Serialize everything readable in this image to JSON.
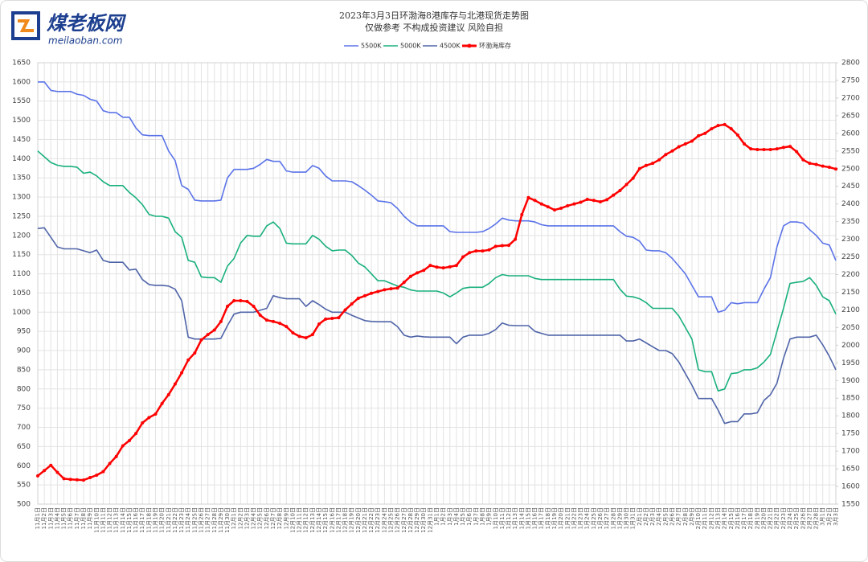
{
  "logo": {
    "name": "煤老板网",
    "url": "meilaoban.com"
  },
  "chart_data": {
    "type": "line",
    "title": "2023年3月3日环渤海8港库存与北港现货走势图",
    "subtitle": "仅做参考 不构成投资建议 风险自担",
    "categories": [
      "11月1日",
      "11月2日",
      "11月3日",
      "11月4日",
      "11月5日",
      "11月6日",
      "11月7日",
      "11月8日",
      "11月9日",
      "11月10日",
      "11月11日",
      "11月12日",
      "11月13日",
      "11月14日",
      "11月15日",
      "11月16日",
      "11月17日",
      "11月18日",
      "11月19日",
      "11月20日",
      "11月21日",
      "11月22日",
      "11月23日",
      "11月24日",
      "11月25日",
      "11月26日",
      "11月27日",
      "11月28日",
      "11月29日",
      "11月30日",
      "12月1日",
      "12月2日",
      "12月3日",
      "12月4日",
      "12月5日",
      "12月6日",
      "12月7日",
      "12月8日",
      "12月9日",
      "12月10日",
      "12月11日",
      "12月12日",
      "12月13日",
      "12月14日",
      "12月15日",
      "12月16日",
      "12月17日",
      "12月18日",
      "12月19日",
      "12月20日",
      "12月21日",
      "12月22日",
      "12月23日",
      "12月24日",
      "12月25日",
      "12月26日",
      "12月27日",
      "12月28日",
      "12月29日",
      "12月30日",
      "12月31日",
      "1月1日",
      "1月2日",
      "1月3日",
      "1月4日",
      "1月5日",
      "1月6日",
      "1月7日",
      "1月8日",
      "1月9日",
      "1月10日",
      "1月11日",
      "1月12日",
      "1月13日",
      "1月14日",
      "1月15日",
      "1月16日",
      "1月17日",
      "1月18日",
      "1月19日",
      "1月20日",
      "1月21日",
      "1月22日",
      "1月23日",
      "1月24日",
      "1月25日",
      "1月26日",
      "1月27日",
      "1月28日",
      "1月29日",
      "1月30日",
      "1月31日",
      "2月1日",
      "2月2日",
      "2月3日",
      "2月4日",
      "2月5日",
      "2月6日",
      "2月7日",
      "2月8日",
      "2月9日",
      "2月10日",
      "2月11日",
      "2月12日",
      "2月13日",
      "2月14日",
      "2月15日",
      "2月16日",
      "2月17日",
      "2月18日",
      "2月19日",
      "2月20日",
      "2月21日",
      "2月22日",
      "2月23日",
      "2月24日",
      "2月25日",
      "2月26日",
      "2月27日",
      "2月28日",
      "3月1日",
      "3月2日",
      "3月3日"
    ],
    "series": [
      {
        "name": "5500K",
        "color": "#5b73e8",
        "values": [
          1600,
          1600,
          1578,
          1575,
          1575,
          1575,
          1568,
          1565,
          1555,
          1550,
          1525,
          1520,
          1520,
          1508,
          1508,
          1480,
          1462,
          1460,
          1460,
          1460,
          1420,
          1395,
          1330,
          1320,
          1292,
          1290,
          1290,
          1290,
          1292,
          1350,
          1372,
          1372,
          1372,
          1375,
          1385,
          1398,
          1393,
          1393,
          1368,
          1365,
          1365,
          1365,
          1382,
          1375,
          1355,
          1342,
          1342,
          1342,
          1340,
          1330,
          1318,
          1305,
          1290,
          1288,
          1285,
          1270,
          1250,
          1235,
          1225,
          1225,
          1225,
          1225,
          1225,
          1210,
          1208,
          1208,
          1208,
          1208,
          1210,
          1218,
          1230,
          1245,
          1240,
          1238,
          1238,
          1238,
          1235,
          1228,
          1225,
          1225,
          1225,
          1225,
          1225,
          1225,
          1225,
          1225,
          1225,
          1225,
          1225,
          1210,
          1198,
          1195,
          1185,
          1162,
          1160,
          1160,
          1155,
          1140,
          1120,
          1100,
          1070,
          1040,
          1040,
          1040,
          1000,
          1005,
          1025,
          1022,
          1025,
          1025,
          1025,
          1060,
          1090,
          1170,
          1225,
          1235,
          1235,
          1232,
          1215,
          1200,
          1180,
          1175,
          1135
        ]
      },
      {
        "name": "5000K",
        "color": "#19b07d",
        "values": [
          1420,
          1405,
          1390,
          1383,
          1380,
          1380,
          1378,
          1362,
          1365,
          1355,
          1340,
          1330,
          1330,
          1330,
          1312,
          1298,
          1280,
          1255,
          1250,
          1250,
          1245,
          1210,
          1195,
          1135,
          1130,
          1092,
          1090,
          1090,
          1078,
          1120,
          1140,
          1180,
          1200,
          1198,
          1198,
          1225,
          1235,
          1218,
          1180,
          1178,
          1178,
          1178,
          1200,
          1190,
          1172,
          1160,
          1162,
          1162,
          1148,
          1128,
          1118,
          1100,
          1082,
          1082,
          1075,
          1068,
          1065,
          1058,
          1055,
          1055,
          1055,
          1055,
          1050,
          1040,
          1050,
          1062,
          1065,
          1065,
          1065,
          1075,
          1090,
          1098,
          1095,
          1095,
          1095,
          1095,
          1088,
          1085,
          1085,
          1085,
          1085,
          1085,
          1085,
          1085,
          1085,
          1085,
          1085,
          1085,
          1085,
          1060,
          1042,
          1040,
          1035,
          1025,
          1010,
          1010,
          1010,
          1010,
          990,
          960,
          930,
          850,
          845,
          845,
          795,
          800,
          840,
          842,
          850,
          850,
          855,
          870,
          890,
          950,
          1010,
          1075,
          1078,
          1080,
          1090,
          1070,
          1040,
          1030,
          995
        ]
      },
      {
        "name": "4500K",
        "color": "#4f64a8",
        "values": [
          1218,
          1220,
          1195,
          1170,
          1165,
          1165,
          1165,
          1160,
          1155,
          1162,
          1135,
          1130,
          1130,
          1130,
          1110,
          1112,
          1085,
          1072,
          1070,
          1070,
          1068,
          1060,
          1030,
          935,
          930,
          930,
          930,
          930,
          932,
          965,
          995,
          1000,
          1000,
          1000,
          1005,
          1010,
          1043,
          1038,
          1035,
          1035,
          1035,
          1015,
          1030,
          1020,
          1008,
          1000,
          1000,
          1000,
          992,
          985,
          978,
          976,
          975,
          975,
          975,
          962,
          940,
          935,
          938,
          936,
          935,
          935,
          935,
          935,
          918,
          935,
          940,
          940,
          940,
          945,
          955,
          972,
          966,
          965,
          965,
          965,
          950,
          945,
          940,
          940,
          940,
          940,
          940,
          940,
          940,
          940,
          940,
          940,
          940,
          940,
          925,
          925,
          930,
          920,
          910,
          900,
          900,
          892,
          870,
          840,
          810,
          775,
          775,
          775,
          745,
          710,
          715,
          715,
          735,
          735,
          738,
          770,
          785,
          815,
          880,
          930,
          935,
          935,
          935,
          940,
          915,
          885,
          850
        ]
      },
      {
        "name": "环渤海库存",
        "color": "#ff0000",
        "axis": "y2",
        "markers": true,
        "values": [
          1630,
          1645,
          1660,
          1640,
          1622,
          1620,
          1619,
          1618,
          1625,
          1632,
          1642,
          1665,
          1685,
          1715,
          1730,
          1750,
          1780,
          1795,
          1805,
          1835,
          1860,
          1890,
          1922,
          1958,
          1978,
          2015,
          2030,
          2043,
          2067,
          2110,
          2126,
          2126,
          2124,
          2110,
          2085,
          2071,
          2067,
          2062,
          2053,
          2035,
          2025,
          2021,
          2030,
          2060,
          2074,
          2076,
          2078,
          2100,
          2117,
          2133,
          2140,
          2147,
          2152,
          2157,
          2160,
          2162,
          2178,
          2195,
          2205,
          2212,
          2226,
          2221,
          2219,
          2222,
          2226,
          2250,
          2262,
          2267,
          2267,
          2270,
          2280,
          2282,
          2283,
          2300,
          2370,
          2418,
          2410,
          2400,
          2392,
          2383,
          2388,
          2395,
          2400,
          2405,
          2413,
          2410,
          2406,
          2412,
          2425,
          2438,
          2455,
          2473,
          2500,
          2509,
          2515,
          2525,
          2540,
          2550,
          2562,
          2570,
          2578,
          2593,
          2600,
          2613,
          2622,
          2625,
          2613,
          2595,
          2570,
          2556,
          2554,
          2554,
          2554,
          2556,
          2560,
          2563,
          2548,
          2525,
          2515,
          2512,
          2507,
          2504,
          2499
        ]
      }
    ],
    "ylim": [
      500,
      1650
    ],
    "yticks": [
      500,
      550,
      600,
      650,
      700,
      750,
      800,
      850,
      900,
      950,
      1000,
      1050,
      1100,
      1150,
      1200,
      1250,
      1300,
      1350,
      1400,
      1450,
      1500,
      1550,
      1600,
      1650
    ],
    "y2lim": [
      1550,
      2800
    ],
    "y2ticks": [
      1550,
      1600,
      1650,
      1700,
      1750,
      1800,
      1850,
      1900,
      1950,
      2000,
      2050,
      2100,
      2150,
      2200,
      2250,
      2300,
      2350,
      2400,
      2450,
      2500,
      2550,
      2600,
      2650,
      2700,
      2750,
      2800
    ],
    "grid": true,
    "legend": "top"
  }
}
